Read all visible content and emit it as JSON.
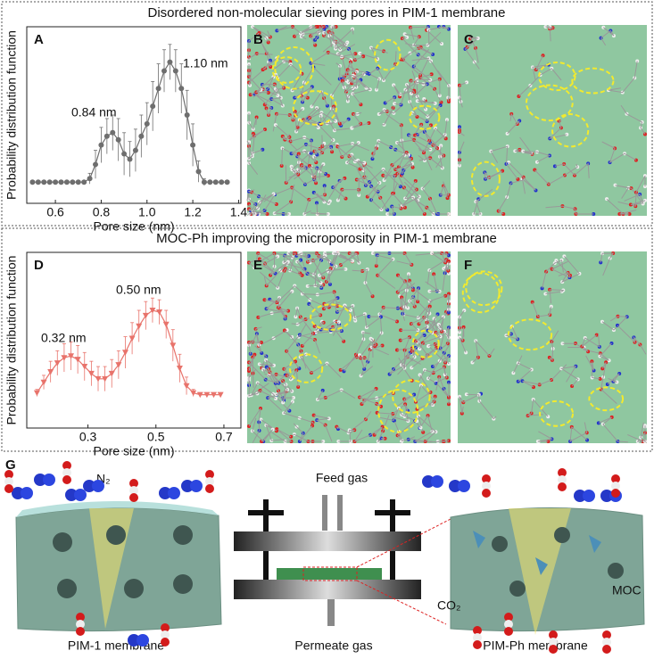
{
  "sections": [
    {
      "title": "Disordered non-molecular sieving pores in PIM-1 membrane"
    },
    {
      "title": "MOC-Ph improving the microporosity in PIM-1 membrane"
    }
  ],
  "panel_labels": [
    "A",
    "B",
    "C",
    "D",
    "E",
    "F",
    "G"
  ],
  "chart_data": [
    {
      "type": "line",
      "marker": "circle",
      "color": "#6e6e6e",
      "xlabel": "Pore size (nm)",
      "ylabel": "Probability distribution function",
      "annotations": [
        "0.84 nm",
        "1.10 nm"
      ],
      "x": [
        0.5,
        0.525,
        0.55,
        0.575,
        0.6,
        0.625,
        0.65,
        0.675,
        0.7,
        0.725,
        0.75,
        0.775,
        0.8,
        0.825,
        0.85,
        0.875,
        0.9,
        0.925,
        0.95,
        0.975,
        1.0,
        1.025,
        1.05,
        1.075,
        1.1,
        1.125,
        1.15,
        1.175,
        1.2,
        1.225,
        1.25,
        1.275,
        1.3,
        1.325,
        1.35
      ],
      "values": [
        0.12,
        0.12,
        0.12,
        0.12,
        0.12,
        0.12,
        0.12,
        0.12,
        0.12,
        0.12,
        0.14,
        0.22,
        0.33,
        0.38,
        0.4,
        0.36,
        0.28,
        0.25,
        0.3,
        0.38,
        0.45,
        0.55,
        0.65,
        0.75,
        0.8,
        0.75,
        0.65,
        0.5,
        0.33,
        0.18,
        0.12,
        0.12,
        0.12,
        0.12,
        0.12
      ],
      "errors": [
        0,
        0,
        0,
        0,
        0,
        0,
        0,
        0,
        0,
        0,
        0.03,
        0.08,
        0.1,
        0.1,
        0.1,
        0.12,
        0.12,
        0.1,
        0.12,
        0.12,
        0.12,
        0.14,
        0.14,
        0.12,
        0.1,
        0.12,
        0.14,
        0.14,
        0.12,
        0.06,
        0.02,
        0,
        0,
        0,
        0
      ],
      "xlim": [
        0.475,
        1.41
      ],
      "ylim": [
        0,
        1
      ],
      "xticks": [
        0.6,
        0.8,
        {
          "value": 1,
          "label": "1.0"
        },
        1.2,
        1.4
      ]
    },
    {
      "type": "line",
      "marker": "triangle-down",
      "color": "#e8736b",
      "xlabel": "Pore size (nm)",
      "ylabel": "Probability distribution function",
      "annotations": [
        "0.32 nm",
        "0.50 nm"
      ],
      "x": [
        0.15,
        0.17,
        0.19,
        0.21,
        0.23,
        0.25,
        0.27,
        0.29,
        0.31,
        0.33,
        0.35,
        0.37,
        0.39,
        0.41,
        0.43,
        0.45,
        0.47,
        0.49,
        0.51,
        0.53,
        0.55,
        0.57,
        0.59,
        0.61,
        0.63,
        0.65,
        0.67,
        0.69
      ],
      "values": [
        0.2,
        0.26,
        0.32,
        0.37,
        0.4,
        0.41,
        0.39,
        0.35,
        0.31,
        0.28,
        0.28,
        0.31,
        0.36,
        0.43,
        0.51,
        0.58,
        0.64,
        0.67,
        0.66,
        0.59,
        0.47,
        0.34,
        0.24,
        0.2,
        0.19,
        0.19,
        0.19,
        0.19
      ],
      "errors": [
        0.02,
        0.04,
        0.06,
        0.07,
        0.08,
        0.08,
        0.08,
        0.08,
        0.07,
        0.07,
        0.07,
        0.08,
        0.08,
        0.09,
        0.09,
        0.09,
        0.08,
        0.07,
        0.07,
        0.08,
        0.09,
        0.08,
        0.05,
        0.02,
        0.01,
        0.01,
        0.01,
        0.01
      ],
      "xlim": [
        0.12,
        0.75
      ],
      "ylim": [
        0,
        1
      ],
      "xticks": [
        0.3,
        0.5,
        0.7
      ]
    }
  ],
  "schematic": {
    "feed": "Feed gas",
    "permeate": "Permeate gas",
    "left_membrane": "PIM-1 membrane",
    "right_membrane": "PIM-Ph membrane",
    "n2": "N₂",
    "co2": "CO₂",
    "moc": "MOC"
  }
}
